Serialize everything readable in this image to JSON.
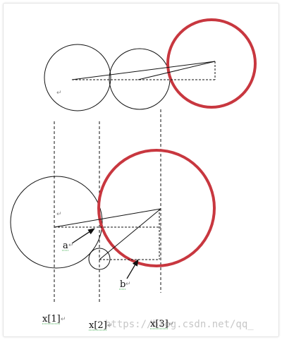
{
  "labels": {
    "a": "a",
    "b": "b",
    "x1": "x[1]",
    "x2": "x[2]",
    "x3": "x[3]"
  },
  "paragraph_mark": "↵",
  "watermark": "https://blog.csdn.net/qq_",
  "colors": {
    "line": "#111111",
    "highlight": "#c8373f",
    "watermark": "#c7c7c7"
  }
}
